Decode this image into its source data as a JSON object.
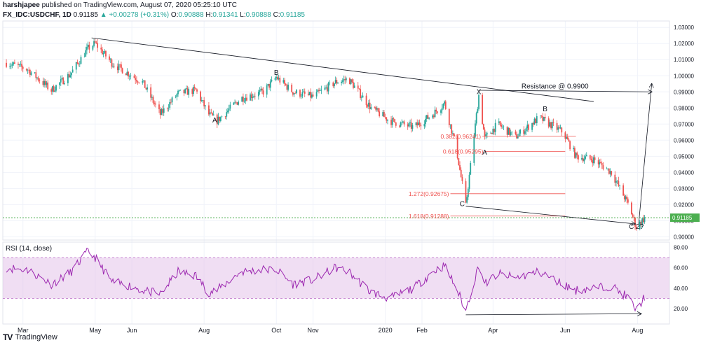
{
  "header": {
    "author": "harshjapee",
    "published": "published on TradingView.com, August 07, 2020 05:25:10 UTC",
    "symbol": "FX_IDC:USDCHF, 1D",
    "last": "0.91185",
    "change_arrow": "▲",
    "change": "+0.00278 (+0.31%)",
    "o_label": "O:",
    "o_value": "0.90888",
    "h_label": "H:",
    "h_value": "0.91341",
    "l_label": "L:",
    "l_value": "0.90888",
    "c_label": "C:",
    "c_value": "0.91185"
  },
  "footer": {
    "logo": "TV",
    "brand": "TradingView"
  },
  "colors": {
    "up": "#26a69a",
    "down": "#ef5350",
    "rsi": "#9c27b0",
    "rsi_band": "#e1bee7",
    "fib": "#ef5350",
    "price_line": "#4caf50"
  },
  "chart_data": [
    {
      "type": "candlestick",
      "xaxis_ticks": [
        "Mar",
        "May",
        "Jun",
        "Aug",
        "Oct",
        "Nov",
        "2020",
        "Feb",
        "Apr",
        "Jun",
        "Aug"
      ],
      "yaxis_ticks": [
        "1.03000",
        "1.02000",
        "1.01000",
        "1.00000",
        "0.99000",
        "0.98000",
        "0.97000",
        "0.96000",
        "0.95000",
        "0.94000",
        "0.93000",
        "0.92000",
        "0.91000",
        "0.90000"
      ],
      "ylim": [
        0.898,
        1.034
      ],
      "last_price": 0.91185,
      "last_price_label": "0.91185",
      "close_path": [
        {
          "x": "2019-02-15",
          "y": 1.008
        },
        {
          "x": "2019-03-05",
          "y": 1.004
        },
        {
          "x": "2019-03-25",
          "y": 0.991
        },
        {
          "x": "2019-04-10",
          "y": 1.001
        },
        {
          "x": "2019-04-25",
          "y": 1.017
        },
        {
          "x": "2019-05-01",
          "y": 1.02
        },
        {
          "x": "2019-05-15",
          "y": 1.008
        },
        {
          "x": "2019-06-01",
          "y": 1.0
        },
        {
          "x": "2019-06-10",
          "y": 0.996
        },
        {
          "x": "2019-06-25",
          "y": 0.976
        },
        {
          "x": "2019-07-10",
          "y": 0.989
        },
        {
          "x": "2019-07-25",
          "y": 0.991
        },
        {
          "x": "2019-08-05",
          "y": 0.976
        },
        {
          "x": "2019-08-12",
          "y": 0.972
        },
        {
          "x": "2019-09-01",
          "y": 0.986
        },
        {
          "x": "2019-09-20",
          "y": 0.99
        },
        {
          "x": "2019-10-01",
          "y": 0.999
        },
        {
          "x": "2019-10-15",
          "y": 0.99
        },
        {
          "x": "2019-11-01",
          "y": 0.987
        },
        {
          "x": "2019-11-20",
          "y": 0.996
        },
        {
          "x": "2019-12-01",
          "y": 0.998
        },
        {
          "x": "2019-12-20",
          "y": 0.98
        },
        {
          "x": "2020-01-05",
          "y": 0.972
        },
        {
          "x": "2020-01-25",
          "y": 0.968
        },
        {
          "x": "2020-02-10",
          "y": 0.976
        },
        {
          "x": "2020-02-20",
          "y": 0.983
        },
        {
          "x": "2020-03-01",
          "y": 0.955
        },
        {
          "x": "2020-03-09",
          "y": 0.919
        },
        {
          "x": "2020-03-20",
          "y": 0.988
        },
        {
          "x": "2020-03-25",
          "y": 0.961
        },
        {
          "x": "2020-04-05",
          "y": 0.97
        },
        {
          "x": "2020-04-20",
          "y": 0.962
        },
        {
          "x": "2020-05-10",
          "y": 0.974
        },
        {
          "x": "2020-05-30",
          "y": 0.965
        },
        {
          "x": "2020-06-10",
          "y": 0.95
        },
        {
          "x": "2020-06-25",
          "y": 0.948
        },
        {
          "x": "2020-07-10",
          "y": 0.94
        },
        {
          "x": "2020-07-25",
          "y": 0.919
        },
        {
          "x": "2020-07-31",
          "y": 0.906
        },
        {
          "x": "2020-08-07",
          "y": 0.9118
        }
      ],
      "wave_labels": [
        {
          "text": "A",
          "x": "2019-08-10",
          "y": 0.971
        },
        {
          "text": "B",
          "x": "2019-10-01",
          "y": 1.0005
        },
        {
          "text": "X",
          "x": "2020-03-20",
          "y": 0.9885
        },
        {
          "text": "A",
          "x": "2020-03-25",
          "y": 0.951
        },
        {
          "text": "B",
          "x": "2020-05-15",
          "y": 0.978
        },
        {
          "text": "C",
          "x": "2020-03-06",
          "y": 0.919
        },
        {
          "text": "C 2?",
          "x": "2020-07-31",
          "y": 0.905
        }
      ],
      "annotation": {
        "text": "Resistance @ 0.9900",
        "x": "2020-04-25",
        "y": 0.992
      },
      "fib_levels": [
        {
          "label": "0.382(0.96241)",
          "value": 0.96241
        },
        {
          "label": "0.618(0.95295)",
          "value": 0.95295
        },
        {
          "label": "1.272(0.92675)",
          "value": 0.92675
        },
        {
          "label": "1.618(0.91288)",
          "value": 0.91288
        }
      ],
      "trendlines": [
        {
          "from": {
            "x": "2019-04-28",
            "y": 1.0235
          },
          "to": {
            "x": "2020-06-25",
            "y": 0.984
          }
        },
        {
          "from": {
            "x": "2020-03-20",
            "y": 0.991
          },
          "to": {
            "x": "2020-08-13",
            "y": 0.99
          },
          "arrow": true
        },
        {
          "from": {
            "x": "2020-08-02",
            "y": 0.908
          },
          "to": {
            "x": "2020-08-13",
            "y": 0.995
          },
          "arrow": true
        },
        {
          "from": {
            "x": "2020-03-09",
            "y": 0.919
          },
          "to": {
            "x": "2020-07-30",
            "y": 0.908
          },
          "arrow": true
        }
      ]
    },
    {
      "type": "line",
      "title": "RSI (14, close)",
      "yaxis_ticks": [
        "80.00",
        "60.00",
        "40.00",
        "20.00"
      ],
      "ylim": [
        5,
        85
      ],
      "band": [
        30,
        70
      ],
      "series": [
        {
          "values": [
            {
              "x": "2019-02-15",
              "y": 60
            },
            {
              "x": "2019-03-05",
              "y": 58
            },
            {
              "x": "2019-03-25",
              "y": 44
            },
            {
              "x": "2019-04-10",
              "y": 55
            },
            {
              "x": "2019-04-25",
              "y": 76
            },
            {
              "x": "2019-05-01",
              "y": 70
            },
            {
              "x": "2019-05-15",
              "y": 46
            },
            {
              "x": "2019-06-01",
              "y": 42
            },
            {
              "x": "2019-06-10",
              "y": 38
            },
            {
              "x": "2019-06-25",
              "y": 34
            },
            {
              "x": "2019-07-10",
              "y": 56
            },
            {
              "x": "2019-07-25",
              "y": 52
            },
            {
              "x": "2019-08-05",
              "y": 36
            },
            {
              "x": "2019-08-12",
              "y": 38
            },
            {
              "x": "2019-09-01",
              "y": 56
            },
            {
              "x": "2019-09-20",
              "y": 58
            },
            {
              "x": "2019-10-01",
              "y": 58
            },
            {
              "x": "2019-10-15",
              "y": 44
            },
            {
              "x": "2019-11-01",
              "y": 48
            },
            {
              "x": "2019-11-20",
              "y": 60
            },
            {
              "x": "2019-12-01",
              "y": 56
            },
            {
              "x": "2019-12-20",
              "y": 36
            },
            {
              "x": "2020-01-05",
              "y": 30
            },
            {
              "x": "2020-01-25",
              "y": 40
            },
            {
              "x": "2020-02-10",
              "y": 56
            },
            {
              "x": "2020-02-20",
              "y": 62
            },
            {
              "x": "2020-03-01",
              "y": 40
            },
            {
              "x": "2020-03-09",
              "y": 18
            },
            {
              "x": "2020-03-20",
              "y": 63
            },
            {
              "x": "2020-03-25",
              "y": 44
            },
            {
              "x": "2020-04-05",
              "y": 54
            },
            {
              "x": "2020-04-20",
              "y": 50
            },
            {
              "x": "2020-05-10",
              "y": 56
            },
            {
              "x": "2020-05-30",
              "y": 44
            },
            {
              "x": "2020-06-10",
              "y": 38
            },
            {
              "x": "2020-06-25",
              "y": 40
            },
            {
              "x": "2020-07-10",
              "y": 42
            },
            {
              "x": "2020-07-25",
              "y": 30
            },
            {
              "x": "2020-07-31",
              "y": 18
            },
            {
              "x": "2020-08-07",
              "y": 32
            }
          ]
        }
      ],
      "trendline": {
        "from": {
          "x": "2020-03-09",
          "y": 14
        },
        "to": {
          "x": "2020-08-04",
          "y": 15
        },
        "arrow": true
      }
    }
  ]
}
